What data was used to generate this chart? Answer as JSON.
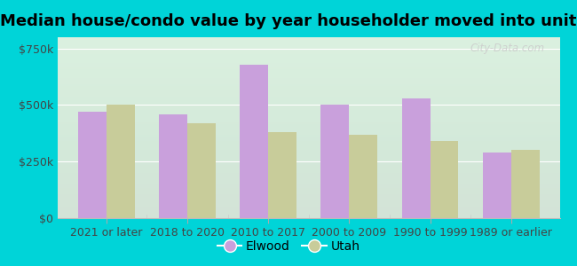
{
  "title": "Median house/condo value by year householder moved into unit",
  "categories": [
    "2021 or later",
    "2018 to 2020",
    "2010 to 2017",
    "2000 to 2009",
    "1990 to 1999",
    "1989 or earlier"
  ],
  "elwood_values": [
    470000,
    460000,
    680000,
    500000,
    530000,
    290000
  ],
  "utah_values": [
    500000,
    420000,
    380000,
    370000,
    340000,
    300000
  ],
  "elwood_color": "#c9a0dc",
  "utah_color": "#c8cc9a",
  "background_outer": "#00d4d8",
  "background_inner_top": "#e8f5e8",
  "background_inner_bottom": "#f8fff8",
  "ylim": [
    0,
    800000
  ],
  "yticks": [
    0,
    250000,
    500000,
    750000
  ],
  "ytick_labels": [
    "$0",
    "$250k",
    "$500k",
    "$750k"
  ],
  "bar_width": 0.35,
  "legend_labels": [
    "Elwood",
    "Utah"
  ],
  "title_fontsize": 13,
  "tick_fontsize": 9,
  "legend_fontsize": 10,
  "watermark": "City-Data.com"
}
